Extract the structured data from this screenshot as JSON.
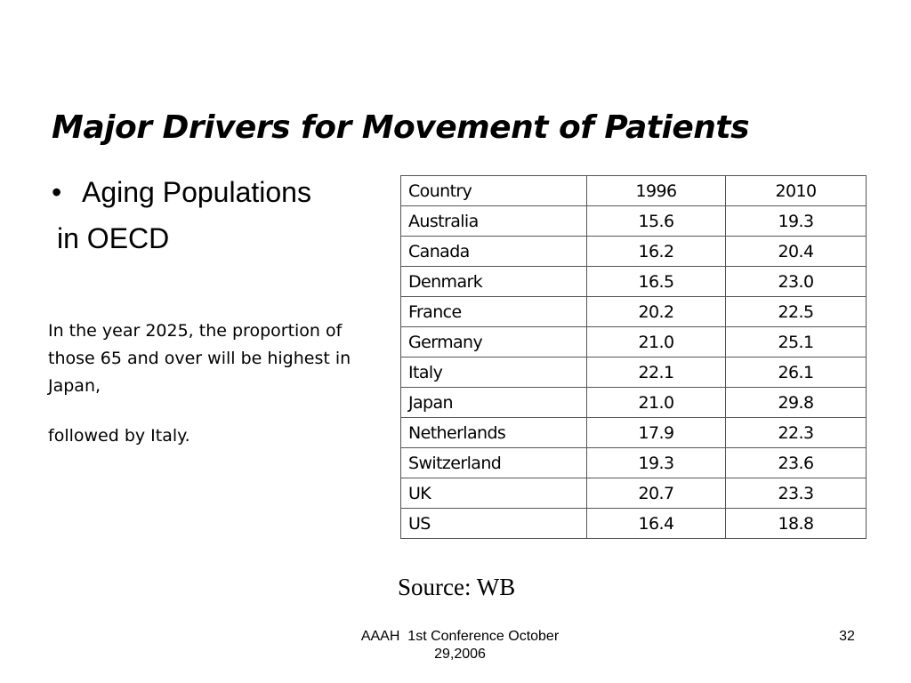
{
  "slide": {
    "title": "Major Drivers for Movement of Patients",
    "bullet": {
      "marker": "•",
      "line1": "Aging Populations",
      "line2": "in OECD"
    },
    "note_paragraph_1": "In the year 2025, the proportion of those 65 and over will be highest in Japan,",
    "note_paragraph_2": "followed by Italy.",
    "table": {
      "headers": [
        "Country",
        "1996",
        "2010"
      ],
      "rows": [
        [
          "Australia",
          "15.6",
          "19.3"
        ],
        [
          "Canada",
          "16.2",
          "20.4"
        ],
        [
          "Denmark",
          "16.5",
          "23.0"
        ],
        [
          "France",
          "20.2",
          "22.5"
        ],
        [
          "Germany",
          "21.0",
          "25.1"
        ],
        [
          "Italy",
          "22.1",
          "26.1"
        ],
        [
          "Japan",
          "21.0",
          "29.8"
        ],
        [
          "Netherlands",
          "17.9",
          "22.3"
        ],
        [
          "Switzerland",
          "19.3",
          "23.6"
        ],
        [
          "UK",
          "20.7",
          "23.3"
        ],
        [
          "US",
          "16.4",
          "18.8"
        ]
      ]
    },
    "source": "Source: WB",
    "footer": {
      "line1": "AAAH  1st Conference October",
      "line2": "29,2006"
    },
    "page_number": "32"
  }
}
